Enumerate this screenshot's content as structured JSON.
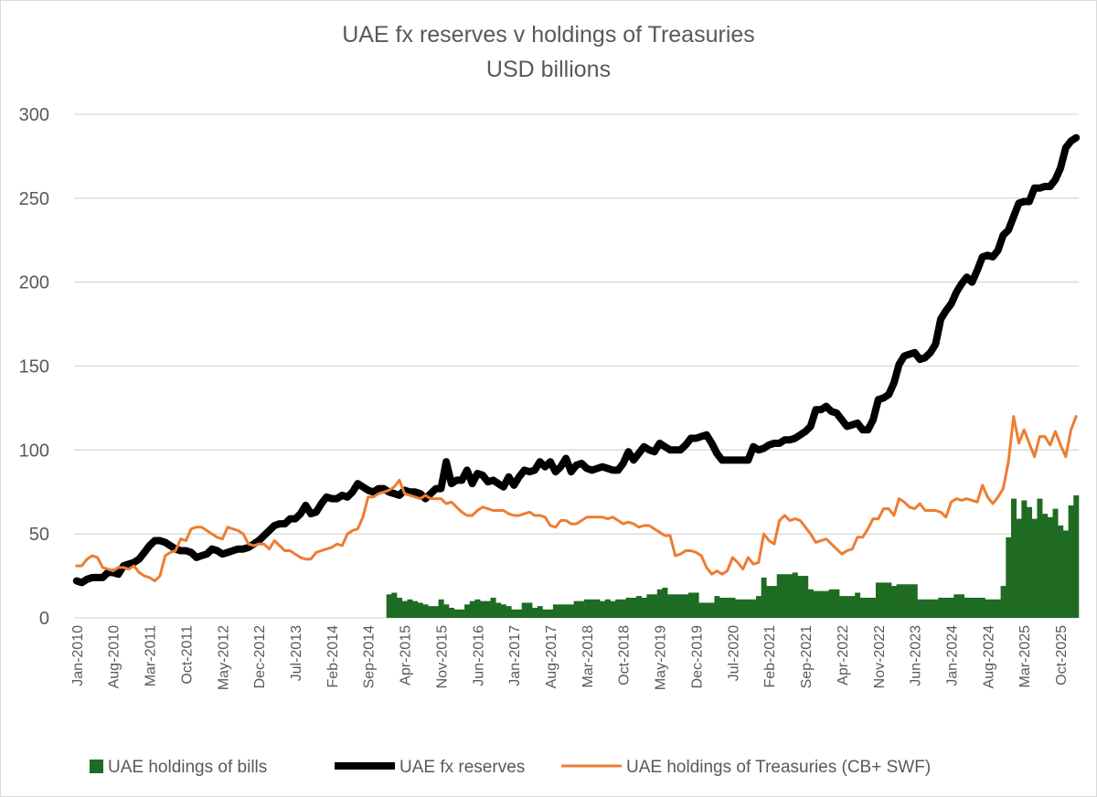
{
  "chart_data": {
    "type": "bar+line",
    "title": "UAE fx reserves v holdings of Treasuries",
    "subtitle": "USD billions",
    "x_start": "Jan-2010",
    "x_end": "Jan-2026",
    "x_frequency": "monthly",
    "tick_labels": [
      "Jan-2010",
      "Aug-2010",
      "Mar-2011",
      "Oct-2011",
      "May-2012",
      "Dec-2012",
      "Jul-2013",
      "Feb-2014",
      "Sep-2014",
      "Apr-2015",
      "Nov-2015",
      "Jun-2016",
      "Jan-2017",
      "Aug-2017",
      "Mar-2018",
      "Oct-2018",
      "May-2019",
      "Dec-2019",
      "Jul-2020",
      "Feb-2021",
      "Sep-2021",
      "Apr-2022",
      "Nov-2022",
      "Jun-2023",
      "Jan-2024",
      "Aug-2024",
      "Mar-2025",
      "Oct-2025"
    ],
    "ylim": [
      0,
      300
    ],
    "yticks": [
      0,
      50,
      100,
      150,
      200,
      250,
      300
    ],
    "grid": true,
    "legend_position": "bottom",
    "series": [
      {
        "name": "UAE holdings of bills",
        "kind": "bar",
        "color": "#1e6b23",
        "start": "Jan-2015",
        "values": [
          14,
          15,
          12,
          10,
          11,
          10,
          9,
          8,
          7,
          7,
          11,
          8,
          6,
          5,
          5,
          8,
          10,
          11,
          10,
          10,
          12,
          9,
          8,
          7,
          5,
          5,
          9,
          9,
          6,
          7,
          5,
          5,
          8,
          8,
          8,
          8,
          10,
          10,
          11,
          11,
          11,
          10,
          11,
          10,
          11,
          11,
          12,
          12,
          13,
          12,
          14,
          14,
          17,
          18,
          14,
          14,
          14,
          14,
          15,
          15,
          9,
          9,
          9,
          13,
          12,
          12,
          12,
          11,
          11,
          11,
          11,
          13,
          24,
          19,
          19,
          26,
          26,
          26,
          27,
          25,
          25,
          17,
          16,
          16,
          16,
          17,
          17,
          13,
          13,
          13,
          15,
          12,
          12,
          12,
          21,
          21,
          21,
          19,
          20,
          20,
          20,
          20,
          11,
          11,
          11,
          11,
          12,
          12,
          12,
          14,
          14,
          12,
          12,
          12,
          12,
          11,
          11,
          11,
          19,
          48,
          71,
          59,
          70,
          66,
          59,
          71,
          62,
          60,
          65,
          55,
          52,
          67,
          73
        ]
      },
      {
        "name": "UAE fx reserves",
        "kind": "line",
        "color": "#000000",
        "start": "Jan-2010",
        "values": [
          22,
          21,
          23,
          24,
          24,
          24,
          27,
          27,
          26,
          31,
          32,
          33,
          35,
          39,
          43,
          46,
          46,
          45,
          43,
          41,
          40,
          40,
          39,
          36,
          37,
          38,
          41,
          40,
          38,
          39,
          40,
          41,
          41,
          42,
          44,
          46,
          49,
          52,
          55,
          56,
          56,
          59,
          59,
          62,
          67,
          62,
          63,
          68,
          72,
          71,
          71,
          73,
          72,
          75,
          80,
          78,
          76,
          75,
          77,
          77,
          75,
          74,
          73,
          76,
          75,
          75,
          74,
          71,
          74,
          77,
          77,
          93,
          80,
          82,
          82,
          88,
          80,
          86,
          85,
          81,
          82,
          80,
          78,
          84,
          79,
          84,
          88,
          87,
          88,
          93,
          90,
          93,
          87,
          90,
          95,
          87,
          91,
          92,
          89,
          88,
          89,
          90,
          89,
          88,
          88,
          92,
          99,
          94,
          98,
          102,
          100,
          99,
          104,
          102,
          100,
          100,
          100,
          103,
          107,
          107,
          108,
          109,
          104,
          98,
          94,
          94,
          94,
          94,
          94,
          94,
          102,
          100,
          101,
          103,
          104,
          104,
          106,
          106,
          107,
          109,
          111,
          114,
          124,
          124,
          126,
          123,
          122,
          118,
          114,
          115,
          116,
          112,
          112,
          118,
          130,
          131,
          133,
          140,
          151,
          156,
          157,
          158,
          154,
          155,
          158,
          163,
          178,
          183,
          187,
          194,
          199,
          203,
          200,
          207,
          215,
          216,
          215,
          219,
          228,
          231,
          239,
          247,
          248,
          248,
          256,
          256,
          257,
          257,
          261,
          268,
          280,
          284,
          286
        ]
      },
      {
        "name": "UAE holdings of Treasuries (CB+ SWF)",
        "kind": "line",
        "color": "#ed7d31",
        "start": "Jan-2010",
        "values": [
          31,
          31,
          35,
          37,
          36,
          30,
          29,
          28,
          30,
          30,
          29,
          31,
          27,
          25,
          24,
          22,
          25,
          37,
          39,
          40,
          47,
          46,
          53,
          54,
          54,
          52,
          50,
          48,
          47,
          54,
          53,
          52,
          50,
          44,
          43,
          44,
          44,
          41,
          46,
          43,
          40,
          40,
          38,
          36,
          35,
          35,
          39,
          40,
          41,
          42,
          44,
          43,
          50,
          52,
          53,
          60,
          72,
          72,
          74,
          75,
          76,
          78,
          82,
          74,
          73,
          72,
          71,
          73,
          71,
          71,
          71,
          68,
          69,
          66,
          63,
          61,
          61,
          64,
          66,
          65,
          64,
          64,
          64,
          62,
          61,
          61,
          62,
          63,
          61,
          61,
          60,
          55,
          54,
          58,
          58,
          56,
          56,
          58,
          60,
          60,
          60,
          60,
          59,
          60,
          58,
          56,
          57,
          56,
          54,
          55,
          55,
          53,
          51,
          49,
          49,
          37,
          38,
          40,
          40,
          39,
          37,
          30,
          26,
          28,
          26,
          28,
          36,
          33,
          29,
          36,
          32,
          33,
          50,
          46,
          44,
          58,
          61,
          58,
          59,
          58,
          54,
          50,
          45,
          46,
          47,
          44,
          41,
          38,
          40,
          41,
          48,
          48,
          53,
          59,
          59,
          65,
          65,
          61,
          71,
          69,
          66,
          65,
          68,
          64,
          64,
          64,
          63,
          60,
          69,
          71,
          70,
          71,
          70,
          69,
          79,
          72,
          68,
          72,
          77,
          93,
          120,
          104,
          112,
          104,
          96,
          108,
          108,
          103,
          111,
          103,
          96,
          112,
          120
        ]
      }
    ]
  }
}
